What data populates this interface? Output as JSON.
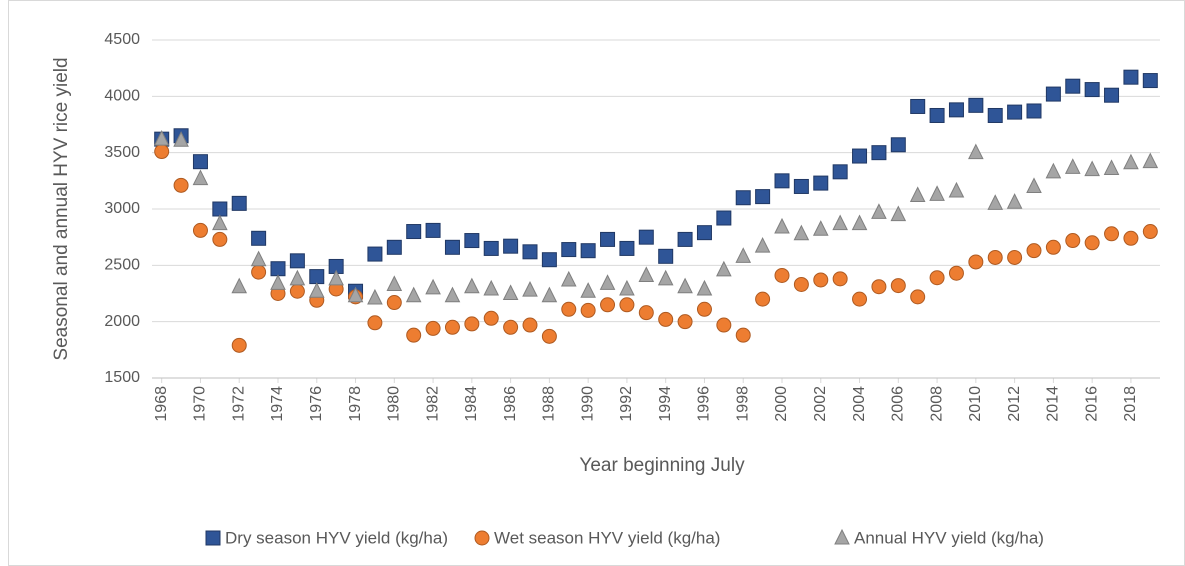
{
  "chart_data": {
    "type": "scatter",
    "x_label": "Year beginning July",
    "y_label": "Seasonal and annual HYV rice yield",
    "x": [
      1968,
      1969,
      1970,
      1971,
      1972,
      1973,
      1974,
      1975,
      1976,
      1977,
      1978,
      1979,
      1980,
      1981,
      1982,
      1983,
      1984,
      1985,
      1986,
      1987,
      1988,
      1989,
      1990,
      1991,
      1992,
      1993,
      1994,
      1995,
      1996,
      1997,
      1998,
      1999,
      2000,
      2001,
      2002,
      2003,
      2004,
      2005,
      2006,
      2007,
      2008,
      2009,
      2010,
      2011,
      2012,
      2013,
      2014,
      2015,
      2016,
      2017,
      2018,
      2019
    ],
    "series": [
      {
        "name": "Dry season HYV yield (kg/ha)",
        "color": "#2f5597",
        "marker": "square",
        "values": [
          3620,
          3650,
          3420,
          3000,
          3050,
          2740,
          2470,
          2540,
          2400,
          2490,
          2270,
          2600,
          2660,
          2800,
          2810,
          2660,
          2720,
          2650,
          2670,
          2620,
          2550,
          2640,
          2630,
          2730,
          2650,
          2750,
          2580,
          2730,
          2790,
          2920,
          3100,
          3110,
          3250,
          3200,
          3230,
          3330,
          3470,
          3500,
          3570,
          3910,
          3830,
          3880,
          3920,
          3830,
          3860,
          3870,
          4020,
          4090,
          4060,
          4010,
          4170,
          4140
        ]
      },
      {
        "name": "Wet season HYV yield (kg/ha)",
        "color": "#ed7d31",
        "marker": "circle",
        "values": [
          3510,
          3210,
          2810,
          2730,
          1790,
          2440,
          2250,
          2270,
          2190,
          2290,
          2220,
          1990,
          2170,
          1880,
          1940,
          1950,
          1980,
          2030,
          1950,
          1970,
          1870,
          2110,
          2100,
          2150,
          2150,
          2080,
          2020,
          2000,
          2110,
          1970,
          1880,
          2200,
          2410,
          2330,
          2370,
          2380,
          2200,
          2310,
          2320,
          2220,
          2390,
          2430,
          2530,
          2570,
          2570,
          2630,
          2660,
          2720,
          2700,
          2780,
          2740,
          2800
        ]
      },
      {
        "name": "Annual HYV yield (kg/ha)",
        "color": "#a5a5a5",
        "marker": "triangle",
        "values": [
          3620,
          3610,
          3270,
          2870,
          2310,
          2550,
          2340,
          2380,
          2270,
          2380,
          2230,
          2210,
          2330,
          2230,
          2300,
          2230,
          2310,
          2290,
          2250,
          2280,
          2230,
          2370,
          2270,
          2340,
          2290,
          2410,
          2380,
          2310,
          2290,
          2460,
          2580,
          2670,
          2840,
          2780,
          2820,
          2870,
          2870,
          2970,
          2950,
          3120,
          3130,
          3160,
          3500,
          3050,
          3060,
          3200,
          3330,
          3370,
          3350,
          3360,
          3410,
          3420
        ]
      }
    ],
    "xlim": [
      1967.5,
      2019.5
    ],
    "xticks": [
      1968,
      1970,
      1972,
      1974,
      1976,
      1978,
      1980,
      1982,
      1984,
      1986,
      1988,
      1990,
      1992,
      1994,
      1996,
      1998,
      2000,
      2002,
      2004,
      2006,
      2008,
      2010,
      2012,
      2014,
      2016,
      2018
    ],
    "ylim": [
      1500,
      4500
    ],
    "yticks": [
      1500,
      2000,
      2500,
      3000,
      3500,
      4000,
      4500
    ],
    "grid": true,
    "legend": "bottom"
  }
}
